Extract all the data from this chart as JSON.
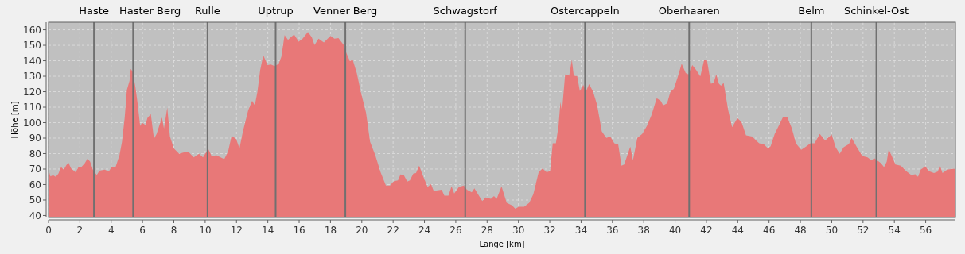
{
  "chart_data": {
    "type": "area",
    "xlabel": "Länge [km]",
    "ylabel": "Höhe [m]",
    "x": [
      0,
      0.12,
      0.29,
      0.46,
      0.63,
      0.8,
      0.97,
      1.14,
      1.27,
      1.44,
      1.73,
      1.9,
      2.07,
      2.32,
      2.49,
      2.66,
      2.83,
      3.08,
      3.25,
      3.59,
      3.85,
      4.02,
      4.27,
      4.53,
      4.69,
      4.86,
      5.0,
      5.17,
      5.25,
      5.37,
      5.54,
      5.68,
      5.85,
      5.97,
      6.19,
      6.31,
      6.53,
      6.73,
      6.9,
      7.24,
      7.37,
      7.58,
      7.75,
      8.0,
      8.34,
      8.59,
      8.93,
      9.27,
      9.61,
      9.86,
      10.2,
      10.42,
      10.71,
      11.22,
      11.47,
      11.69,
      11.98,
      12.19,
      12.41,
      12.75,
      13.0,
      13.17,
      13.34,
      13.51,
      13.71,
      13.98,
      14.19,
      14.44,
      14.69,
      14.86,
      15.07,
      15.29,
      15.46,
      15.68,
      15.97,
      16.22,
      16.56,
      16.81,
      16.98,
      17.24,
      17.58,
      18.0,
      18.25,
      18.51,
      18.85,
      19.02,
      19.24,
      19.42,
      19.68,
      19.93,
      20.27,
      20.53,
      20.86,
      21.2,
      21.54,
      21.8,
      22.05,
      22.31,
      22.47,
      22.68,
      22.9,
      23.07,
      23.29,
      23.46,
      23.66,
      23.92,
      24.2,
      24.42,
      24.59,
      25.1,
      25.27,
      25.53,
      25.73,
      25.9,
      26.2,
      26.51,
      26.71,
      27.02,
      27.19,
      27.39,
      27.69,
      27.9,
      28.24,
      28.44,
      28.61,
      28.92,
      29.25,
      29.59,
      29.8,
      30.02,
      30.36,
      30.69,
      30.95,
      31.29,
      31.54,
      31.8,
      32.02,
      32.19,
      32.39,
      32.56,
      32.68,
      32.78,
      32.98,
      33.24,
      33.41,
      33.53,
      33.75,
      33.92,
      34.14,
      34.31,
      34.51,
      34.76,
      35.02,
      35.32,
      35.61,
      35.86,
      36.12,
      36.37,
      36.58,
      36.75,
      37.14,
      37.31,
      37.59,
      37.9,
      38.2,
      38.49,
      38.83,
      39.08,
      39.24,
      39.49,
      39.71,
      39.92,
      40.17,
      40.42,
      40.68,
      40.85,
      41.1,
      41.36,
      41.61,
      41.86,
      42.03,
      42.29,
      42.46,
      42.63,
      42.8,
      42.93,
      43.1,
      43.39,
      43.64,
      43.98,
      44.24,
      44.53,
      44.92,
      45.17,
      45.37,
      45.68,
      45.93,
      46.1,
      46.36,
      46.61,
      46.9,
      47.17,
      47.46,
      47.71,
      48.05,
      48.39,
      48.64,
      48.9,
      49.24,
      49.58,
      50.0,
      50.25,
      50.51,
      50.76,
      51.1,
      51.27,
      51.61,
      51.95,
      52.29,
      52.54,
      52.71,
      53.14,
      53.34,
      53.51,
      53.64,
      53.81,
      54.07,
      54.41,
      54.75,
      55.08,
      55.34,
      55.51,
      55.68,
      55.98,
      56.19,
      56.53,
      56.78,
      56.9,
      57.07,
      57.37,
      57.71,
      57.9
    ],
    "series": [
      {
        "color": "#e87878",
        "values": [
          69.6,
          65.3,
          66,
          65,
          67,
          71.3,
          69.6,
          72.5,
          74.2,
          70.4,
          67.9,
          71,
          71,
          73.9,
          76.8,
          74.7,
          69.6,
          66.2,
          69,
          69.6,
          68.4,
          71.3,
          71,
          79,
          87.6,
          103,
          121,
          127,
          134.7,
          133,
          123.5,
          113,
          97.8,
          100,
          98.5,
          103,
          105.5,
          89.6,
          92.7,
          103.3,
          96.1,
          109.8,
          91,
          83.3,
          79.9,
          80.7,
          81.2,
          77.6,
          79.9,
          77.6,
          83,
          78.2,
          79,
          76.4,
          81.6,
          91.5,
          89.3,
          83.3,
          94.4,
          108.1,
          114.1,
          111.2,
          120.1,
          133.8,
          143.6,
          137.2,
          137.6,
          136.5,
          138,
          142.4,
          156.6,
          153.5,
          155.2,
          156.9,
          152.3,
          154.3,
          158.6,
          155.2,
          150.1,
          154.3,
          151.8,
          156.1,
          154.3,
          154.7,
          150.1,
          144.9,
          139.8,
          140.7,
          132.1,
          120.1,
          106.4,
          87.6,
          79,
          67.9,
          59.3,
          59.3,
          62.2,
          62.7,
          66.5,
          66.2,
          61.9,
          62.7,
          67,
          67.4,
          72.2,
          65.3,
          58.5,
          60.2,
          55.9,
          56.7,
          52.8,
          52.8,
          58.8,
          54.2,
          58.5,
          59.3,
          56.7,
          55,
          57.6,
          54.2,
          49.4,
          51.6,
          50.8,
          52.5,
          50.8,
          58.8,
          48.2,
          46.5,
          44.4,
          45.6,
          45.6,
          48.2,
          53.7,
          67.9,
          70.4,
          67.9,
          68.7,
          86.7,
          86.7,
          97.8,
          113.3,
          107.3,
          131.2,
          130.4,
          140.7,
          130.4,
          130,
          120.4,
          124.4,
          120.1,
          124.9,
          120.1,
          111.5,
          94.4,
          90.1,
          91,
          86.7,
          85.9,
          72.2,
          73,
          84.5,
          75.6,
          90.1,
          92.7,
          97.8,
          104.7,
          115.8,
          114.1,
          111.2,
          112.4,
          120.1,
          121.8,
          129.5,
          138.1,
          132.1,
          131.2,
          137.2,
          133.8,
          129.9,
          140.7,
          140.7,
          125.2,
          125.6,
          131.2,
          125.2,
          123.9,
          125.6,
          108.1,
          97,
          103,
          100.4,
          91.8,
          91,
          88.4,
          86.7,
          85.9,
          83.3,
          84.7,
          92.7,
          97.8,
          103.8,
          103.5,
          96.1,
          86.7,
          82.4,
          84.7,
          86.7,
          86.7,
          92.7,
          88.4,
          92.3,
          84.1,
          79.9,
          84.1,
          86.2,
          90.1,
          84.1,
          78.5,
          77.6,
          75.6,
          77,
          73.9,
          71.3,
          74.7,
          82.8,
          79,
          73,
          72.2,
          68.7,
          66.2,
          66.7,
          65,
          69.6,
          71.8,
          68.7,
          67.4,
          68.4,
          72.5,
          67.4,
          69.6,
          70.1,
          70.1
        ]
      }
    ],
    "xlim": [
      0,
      57.9
    ],
    "ylim": [
      38.7,
      164.9
    ],
    "xticks": [
      0,
      2,
      4,
      6,
      8,
      10,
      12,
      14,
      16,
      18,
      20,
      22,
      24,
      26,
      28,
      30,
      32,
      34,
      36,
      38,
      40,
      42,
      44,
      46,
      48,
      50,
      52,
      54,
      56
    ],
    "yticks": [
      40,
      50,
      60,
      70,
      80,
      90,
      100,
      110,
      120,
      130,
      140,
      150,
      160
    ],
    "grid": true,
    "ref_lines": [
      {
        "axis": "x",
        "value": 2.9,
        "label": "Haste",
        "color": "#707070"
      },
      {
        "axis": "x",
        "value": 5.4,
        "label": "Haster Berg",
        "color": "#707070"
      },
      {
        "axis": "x",
        "value": 10.15,
        "label": "Rulle",
        "color": "#707070"
      },
      {
        "axis": "x",
        "value": 14.5,
        "label": "Uptrup",
        "color": "#707070"
      },
      {
        "axis": "x",
        "value": 18.95,
        "label": "Venner Berg",
        "color": "#707070"
      },
      {
        "axis": "x",
        "value": 26.6,
        "label": "Schwagstorf",
        "color": "#707070"
      },
      {
        "axis": "x",
        "value": 34.25,
        "label": "Ostercappeln",
        "color": "#707070"
      },
      {
        "axis": "x",
        "value": 40.9,
        "label": "Oberhaaren",
        "color": "#707070"
      },
      {
        "axis": "x",
        "value": 48.7,
        "label": "Belm",
        "color": "#707070"
      },
      {
        "axis": "x",
        "value": 52.85,
        "label": "Schinkel-Ost",
        "color": "#707070"
      }
    ]
  }
}
